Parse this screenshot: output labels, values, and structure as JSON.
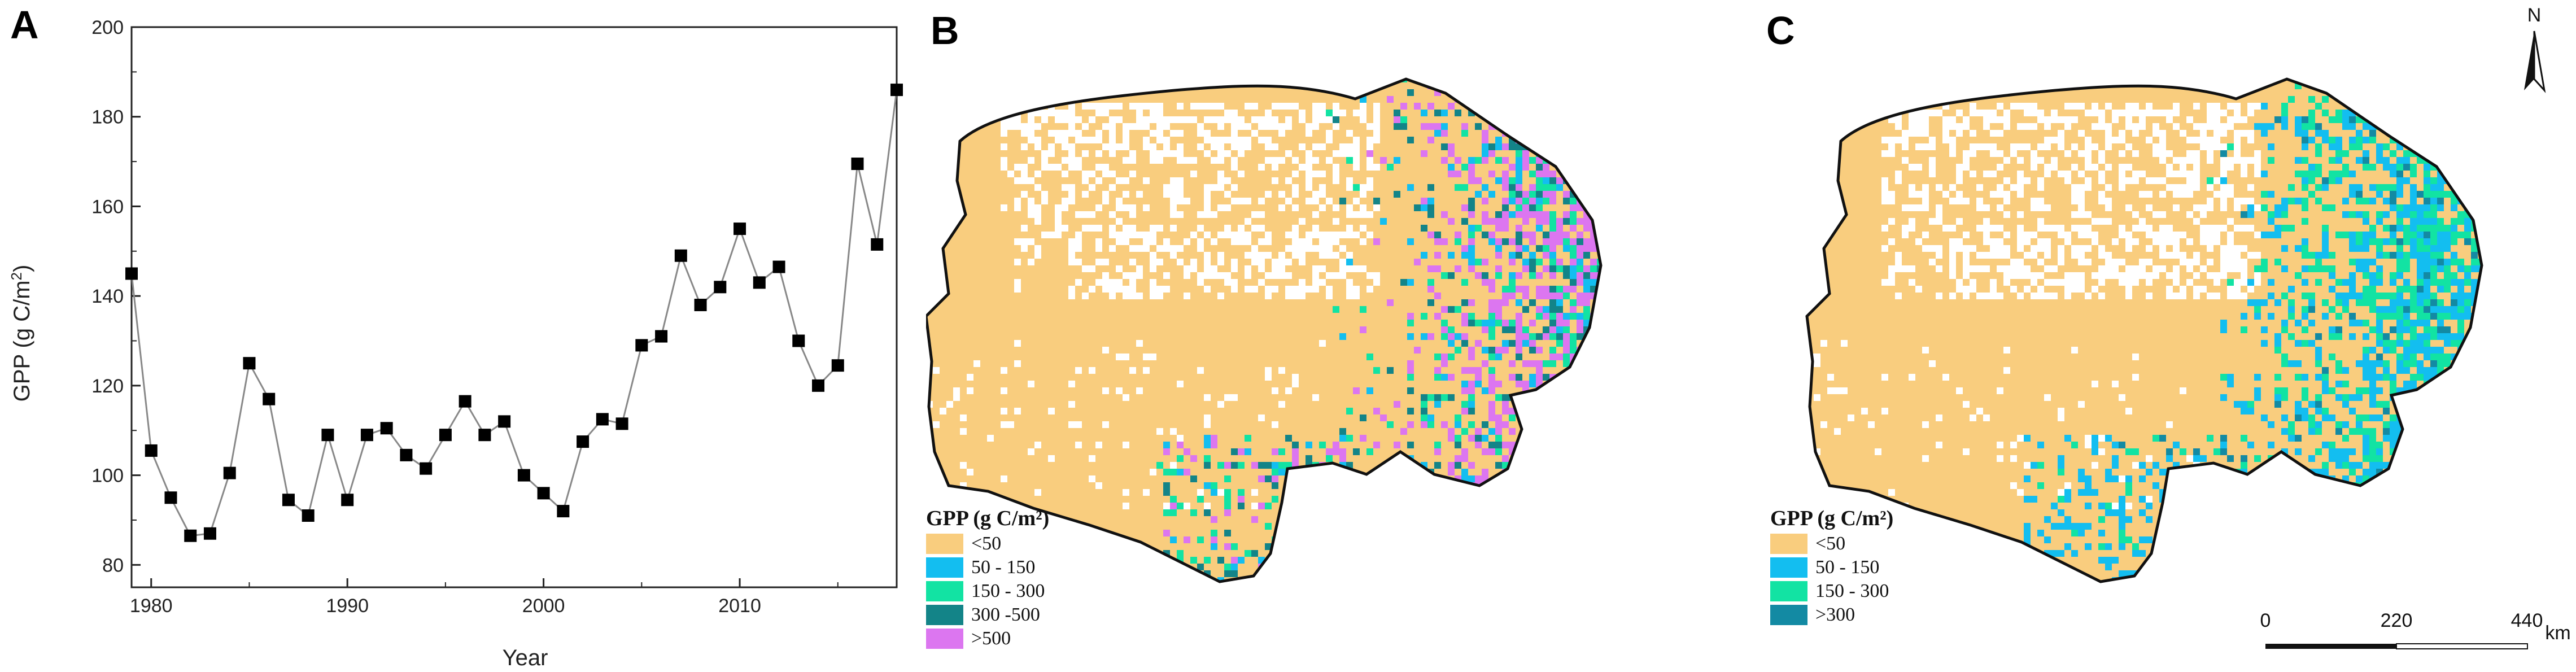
{
  "panels": {
    "a": "A",
    "b": "B",
    "c": "C"
  },
  "chart_data": {
    "type": "line",
    "xlabel": "Year",
    "ylabel_main": "GPP (g C/m",
    "ylabel_sup": "2",
    "ylabel_end": ")",
    "xlim": [
      1979,
      2018
    ],
    "ylim": [
      75,
      200
    ],
    "xticks": [
      1980,
      1990,
      2000,
      2010
    ],
    "yticks": [
      80,
      100,
      120,
      140,
      160,
      180,
      200
    ],
    "x": [
      1979,
      1980,
      1981,
      1982,
      1983,
      1984,
      1985,
      1986,
      1987,
      1988,
      1989,
      1990,
      1991,
      1992,
      1993,
      1994,
      1995,
      1996,
      1997,
      1998,
      1999,
      2000,
      2001,
      2002,
      2003,
      2004,
      2005,
      2006,
      2007,
      2008,
      2009,
      2010,
      2011,
      2012,
      2013,
      2014,
      2015,
      2016,
      2017,
      2018
    ],
    "y": [
      145,
      105.5,
      95,
      86.5,
      87,
      100.5,
      125,
      117,
      94.5,
      91,
      109,
      94.5,
      109,
      110.5,
      104.5,
      101.5,
      109,
      116.5,
      109,
      112,
      100,
      96,
      92,
      107.5,
      112.5,
      111.5,
      129,
      131,
      149,
      138,
      142,
      155,
      143,
      146.5,
      130,
      120,
      124.5,
      169.5,
      151.5,
      186
    ],
    "line_color": "#888888",
    "marker_color": "#000000"
  },
  "map_b": {
    "legend_title": "GPP (g C/m²)",
    "legend": [
      {
        "label": "<50",
        "color": "#F9CD7E"
      },
      {
        "label": "50 - 150",
        "color": "#13BEF0"
      },
      {
        "label": "150 - 300",
        "color": "#12E3A3"
      },
      {
        "label": "300 -500",
        "color": "#138488"
      },
      {
        "label": ">500",
        "color": "#DC76F0"
      }
    ]
  },
  "map_c": {
    "legend_title": "GPP (g C/m²)",
    "legend": [
      {
        "label": "<50",
        "color": "#F9CD7E"
      },
      {
        "label": "50 - 150",
        "color": "#13BEF0"
      },
      {
        "label": "150 - 300",
        "color": "#12E3A3"
      },
      {
        "label": ">300",
        "color": "#138AA3"
      }
    ],
    "north_label": "N",
    "scale": {
      "labels": [
        "0",
        "220",
        "440"
      ],
      "unit": "km"
    }
  }
}
